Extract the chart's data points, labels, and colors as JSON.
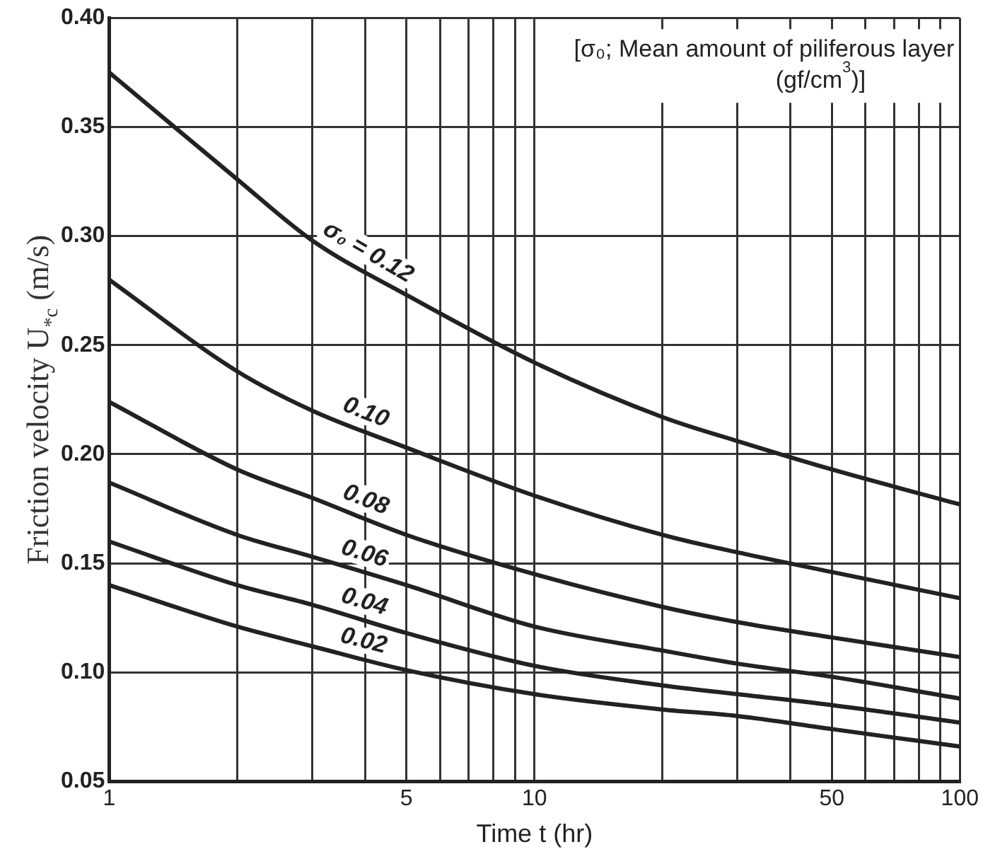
{
  "chart_data": {
    "type": "line",
    "xlabel": "Time t (hr)",
    "ylabel": "Friction velocity U$_{*c}$ (m/s)",
    "annotations": [
      "[σ₀; Mean amount of piliferous layer (gf/cm$^{3}$)]"
    ],
    "x": [
      1,
      2,
      3,
      5,
      10,
      20,
      30,
      50,
      100
    ],
    "series": [
      {
        "name": "σ₀ = 0.12",
        "color": "#222222",
        "values": [
          0.375,
          0.326,
          0.298,
          0.273,
          0.242,
          0.217,
          0.206,
          0.193,
          0.177
        ]
      },
      {
        "name": "0.10",
        "color": "#222222",
        "values": [
          0.28,
          0.238,
          0.22,
          0.203,
          0.181,
          0.163,
          0.155,
          0.146,
          0.134
        ]
      },
      {
        "name": "0.08",
        "color": "#222222",
        "values": [
          0.224,
          0.193,
          0.18,
          0.163,
          0.145,
          0.13,
          0.123,
          0.116,
          0.107
        ]
      },
      {
        "name": "0.06",
        "color": "#222222",
        "values": [
          0.187,
          0.163,
          0.153,
          0.14,
          0.121,
          0.11,
          0.104,
          0.098,
          0.088
        ]
      },
      {
        "name": "0.04",
        "color": "#222222",
        "values": [
          0.16,
          0.14,
          0.131,
          0.118,
          0.103,
          0.094,
          0.09,
          0.085,
          0.077
        ]
      },
      {
        "name": "0.02",
        "color": "#222222",
        "values": [
          0.14,
          0.121,
          0.112,
          0.101,
          0.09,
          0.083,
          0.08,
          0.074,
          0.066
        ]
      }
    ],
    "log": "x",
    "xlim": [
      1,
      100
    ],
    "xticks": [
      1,
      {
        "value": 2,
        "label": null
      },
      {
        "value": 3,
        "label": null
      },
      {
        "value": 4,
        "label": null
      },
      5,
      {
        "value": 6,
        "label": null
      },
      {
        "value": 7,
        "label": null
      },
      {
        "value": 8,
        "label": null
      },
      {
        "value": 9,
        "label": null
      },
      10,
      {
        "value": 20,
        "label": null
      },
      {
        "value": 30,
        "label": null
      },
      {
        "value": 40,
        "label": null
      },
      50,
      {
        "value": 60,
        "label": null
      },
      {
        "value": 70,
        "label": null
      },
      {
        "value": 80,
        "label": null
      },
      {
        "value": 90,
        "label": null
      },
      100
    ],
    "ylim": [
      0.05,
      0.4
    ],
    "yticks": [
      0.05,
      {
        "value": 0.1,
        "label": "0.10"
      },
      0.15,
      {
        "value": 0.2,
        "label": "0.20"
      },
      0.25,
      {
        "value": 0.3,
        "label": "0.30"
      },
      0.35,
      {
        "value": 0.4,
        "label": "0.40"
      }
    ],
    "grid": true,
    "legend": false,
    "marker": "none",
    "line_style": "solid"
  }
}
